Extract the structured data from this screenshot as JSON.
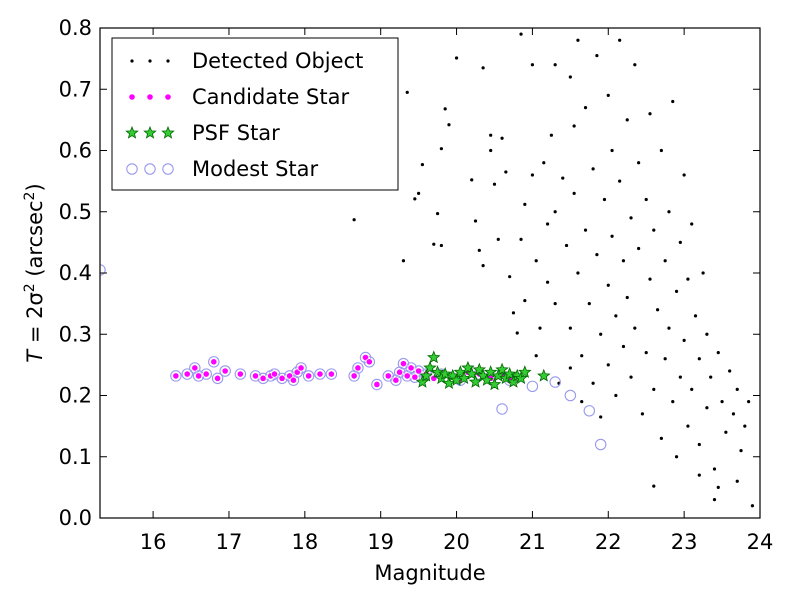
{
  "chart_data": {
    "type": "scatter",
    "xlabel": "Magnitude",
    "ylabel_parts": {
      "prefix": "T",
      "equals": " = 2σ",
      "exp1": "2",
      "mid": " (arcsec",
      "exp2": "2",
      "suffix": ")"
    },
    "xlim": [
      15.3,
      24.0
    ],
    "ylim": [
      0.0,
      0.8
    ],
    "xticks": [
      "16",
      "17",
      "18",
      "19",
      "20",
      "21",
      "22",
      "23",
      "24"
    ],
    "yticks": [
      "0.0",
      "0.1",
      "0.2",
      "0.3",
      "0.4",
      "0.5",
      "0.6",
      "0.7",
      "0.8"
    ],
    "grid": false,
    "legend_position": "top-left",
    "legend": [
      {
        "label": "Detected Object",
        "marker": "dot",
        "color": "#000000"
      },
      {
        "label": "Candidate Star",
        "marker": "circle",
        "color": "#ff00ff"
      },
      {
        "label": "PSF Star",
        "marker": "star",
        "color": "#00aa00"
      },
      {
        "label": "Modest Star",
        "marker": "ring",
        "color": "#9999ee"
      }
    ],
    "series": [
      {
        "name": "Detected Object",
        "marker": "dot",
        "color": "#000000",
        "points": [
          [
            18.65,
            0.487
          ],
          [
            19.05,
            0.753
          ],
          [
            19.15,
            0.748
          ],
          [
            19.3,
            0.42
          ],
          [
            19.35,
            0.695
          ],
          [
            19.45,
            0.521
          ],
          [
            19.5,
            0.53
          ],
          [
            19.55,
            0.577
          ],
          [
            19.7,
            0.447
          ],
          [
            19.75,
            0.497
          ],
          [
            19.8,
            0.445
          ],
          [
            19.8,
            0.603
          ],
          [
            19.85,
            0.668
          ],
          [
            19.9,
            0.642
          ],
          [
            20.0,
            0.751
          ],
          [
            20.2,
            0.552
          ],
          [
            20.25,
            0.485
          ],
          [
            20.3,
            0.437
          ],
          [
            20.35,
            0.735
          ],
          [
            20.35,
            0.412
          ],
          [
            20.45,
            0.625
          ],
          [
            20.45,
            0.6
          ],
          [
            20.5,
            0.545
          ],
          [
            20.55,
            0.455
          ],
          [
            20.6,
            0.62
          ],
          [
            20.65,
            0.565
          ],
          [
            20.7,
            0.394
          ],
          [
            20.75,
            0.335
          ],
          [
            20.8,
            0.302
          ],
          [
            20.85,
            0.79
          ],
          [
            20.85,
            0.455
          ],
          [
            20.9,
            0.512
          ],
          [
            20.9,
            0.355
          ],
          [
            21.0,
            0.74
          ],
          [
            21.0,
            0.56
          ],
          [
            21.05,
            0.42
          ],
          [
            21.05,
            0.265
          ],
          [
            21.1,
            0.31
          ],
          [
            21.15,
            0.58
          ],
          [
            21.2,
            0.48
          ],
          [
            21.2,
            0.385
          ],
          [
            21.25,
            0.625
          ],
          [
            21.3,
            0.74
          ],
          [
            21.3,
            0.5
          ],
          [
            21.3,
            0.35
          ],
          [
            21.35,
            0.22
          ],
          [
            21.4,
            0.555
          ],
          [
            21.45,
            0.445
          ],
          [
            21.5,
            0.72
          ],
          [
            21.5,
            0.31
          ],
          [
            21.5,
            0.245
          ],
          [
            21.55,
            0.64
          ],
          [
            21.55,
            0.53
          ],
          [
            21.6,
            0.78
          ],
          [
            21.6,
            0.4
          ],
          [
            21.65,
            0.265
          ],
          [
            21.65,
            0.19
          ],
          [
            21.7,
            0.67
          ],
          [
            21.7,
            0.47
          ],
          [
            21.75,
            0.35
          ],
          [
            21.8,
            0.57
          ],
          [
            21.8,
            0.22
          ],
          [
            21.85,
            0.755
          ],
          [
            21.85,
            0.43
          ],
          [
            21.9,
            0.3
          ],
          [
            21.9,
            0.165
          ],
          [
            21.95,
            0.52
          ],
          [
            22.0,
            0.69
          ],
          [
            22.0,
            0.38
          ],
          [
            22.0,
            0.25
          ],
          [
            22.05,
            0.6
          ],
          [
            22.05,
            0.46
          ],
          [
            22.1,
            0.33
          ],
          [
            22.1,
            0.2
          ],
          [
            22.15,
            0.78
          ],
          [
            22.15,
            0.55
          ],
          [
            22.2,
            0.42
          ],
          [
            22.2,
            0.28
          ],
          [
            22.25,
            0.65
          ],
          [
            22.25,
            0.36
          ],
          [
            22.3,
            0.49
          ],
          [
            22.3,
            0.23
          ],
          [
            22.35,
            0.74
          ],
          [
            22.35,
            0.31
          ],
          [
            22.4,
            0.58
          ],
          [
            22.4,
            0.44
          ],
          [
            22.45,
            0.17
          ],
          [
            22.5,
            0.52
          ],
          [
            22.5,
            0.27
          ],
          [
            22.55,
            0.66
          ],
          [
            22.55,
            0.39
          ],
          [
            22.6,
            0.47
          ],
          [
            22.6,
            0.21
          ],
          [
            22.65,
            0.34
          ],
          [
            22.7,
            0.6
          ],
          [
            22.7,
            0.13
          ],
          [
            22.75,
            0.42
          ],
          [
            22.75,
            0.26
          ],
          [
            22.8,
            0.5
          ],
          [
            22.8,
            0.31
          ],
          [
            22.85,
            0.68
          ],
          [
            22.85,
            0.19
          ],
          [
            22.9,
            0.37
          ],
          [
            22.9,
            0.1
          ],
          [
            22.95,
            0.45
          ],
          [
            22.95,
            0.23
          ],
          [
            23.0,
            0.56
          ],
          [
            23.0,
            0.29
          ],
          [
            23.05,
            0.39
          ],
          [
            23.05,
            0.15
          ],
          [
            23.1,
            0.48
          ],
          [
            23.1,
            0.21
          ],
          [
            23.15,
            0.33
          ],
          [
            23.2,
            0.26
          ],
          [
            23.2,
            0.12
          ],
          [
            23.25,
            0.4
          ],
          [
            23.3,
            0.18
          ],
          [
            23.3,
            0.3
          ],
          [
            23.35,
            0.23
          ],
          [
            23.4,
            0.08
          ],
          [
            23.45,
            0.27
          ],
          [
            23.45,
            0.05
          ],
          [
            23.5,
            0.19
          ],
          [
            23.55,
            0.14
          ],
          [
            23.6,
            0.24
          ],
          [
            23.65,
            0.17
          ],
          [
            23.7,
            0.21
          ],
          [
            23.75,
            0.11
          ],
          [
            23.8,
            0.15
          ],
          [
            23.85,
            0.19
          ],
          [
            23.9,
            0.02
          ],
          [
            22.6,
            0.052
          ],
          [
            23.4,
            0.03
          ],
          [
            23.2,
            0.07
          ],
          [
            23.7,
            0.06
          ]
        ]
      },
      {
        "name": "Candidate Star",
        "marker": "circle",
        "color": "#ff00ff",
        "points": [
          [
            16.3,
            0.232
          ],
          [
            16.45,
            0.235
          ],
          [
            16.55,
            0.245
          ],
          [
            16.6,
            0.232
          ],
          [
            16.7,
            0.235
          ],
          [
            16.8,
            0.255
          ],
          [
            16.85,
            0.228
          ],
          [
            16.95,
            0.24
          ],
          [
            17.15,
            0.235
          ],
          [
            17.35,
            0.232
          ],
          [
            17.45,
            0.228
          ],
          [
            17.55,
            0.232
          ],
          [
            17.6,
            0.235
          ],
          [
            17.7,
            0.228
          ],
          [
            17.8,
            0.232
          ],
          [
            17.85,
            0.225
          ],
          [
            17.9,
            0.238
          ],
          [
            17.95,
            0.245
          ],
          [
            18.05,
            0.232
          ],
          [
            18.2,
            0.235
          ],
          [
            18.35,
            0.235
          ],
          [
            18.65,
            0.232
          ],
          [
            18.7,
            0.245
          ],
          [
            18.8,
            0.262
          ],
          [
            18.85,
            0.255
          ],
          [
            18.95,
            0.218
          ],
          [
            19.1,
            0.232
          ],
          [
            19.2,
            0.225
          ],
          [
            19.25,
            0.238
          ],
          [
            19.3,
            0.252
          ],
          [
            19.35,
            0.232
          ],
          [
            19.4,
            0.245
          ],
          [
            19.45,
            0.23
          ],
          [
            19.5,
            0.24
          ],
          [
            19.55,
            0.222
          ],
          [
            19.6,
            0.235
          ],
          [
            19.7,
            0.228
          ],
          [
            19.8,
            0.235
          ],
          [
            19.95,
            0.232
          ],
          [
            20.05,
            0.225
          ],
          [
            20.15,
            0.238
          ],
          [
            20.3,
            0.235
          ],
          [
            20.45,
            0.228
          ],
          [
            20.6,
            0.232
          ],
          [
            20.7,
            0.225
          ]
        ]
      },
      {
        "name": "PSF Star",
        "marker": "star",
        "color": "#00aa00",
        "points": [
          [
            19.55,
            0.222
          ],
          [
            19.6,
            0.232
          ],
          [
            19.65,
            0.245
          ],
          [
            19.7,
            0.262
          ],
          [
            19.75,
            0.238
          ],
          [
            19.8,
            0.228
          ],
          [
            19.85,
            0.235
          ],
          [
            19.9,
            0.22
          ],
          [
            19.95,
            0.232
          ],
          [
            20.0,
            0.225
          ],
          [
            20.05,
            0.238
          ],
          [
            20.1,
            0.228
          ],
          [
            20.15,
            0.245
          ],
          [
            20.2,
            0.235
          ],
          [
            20.25,
            0.222
          ],
          [
            20.3,
            0.242
          ],
          [
            20.35,
            0.232
          ],
          [
            20.4,
            0.225
          ],
          [
            20.45,
            0.238
          ],
          [
            20.5,
            0.218
          ],
          [
            20.55,
            0.232
          ],
          [
            20.6,
            0.242
          ],
          [
            20.65,
            0.228
          ],
          [
            20.7,
            0.235
          ],
          [
            20.75,
            0.222
          ],
          [
            20.8,
            0.232
          ],
          [
            20.85,
            0.228
          ],
          [
            20.9,
            0.238
          ],
          [
            21.15,
            0.232
          ]
        ]
      },
      {
        "name": "Modest Star",
        "marker": "ring",
        "color": "#9999ee",
        "points": [
          [
            15.3,
            0.405
          ],
          [
            16.3,
            0.232
          ],
          [
            16.45,
            0.235
          ],
          [
            16.55,
            0.245
          ],
          [
            16.6,
            0.232
          ],
          [
            16.7,
            0.235
          ],
          [
            16.8,
            0.255
          ],
          [
            16.85,
            0.228
          ],
          [
            16.95,
            0.24
          ],
          [
            17.15,
            0.235
          ],
          [
            17.35,
            0.232
          ],
          [
            17.45,
            0.228
          ],
          [
            17.55,
            0.232
          ],
          [
            17.6,
            0.235
          ],
          [
            17.7,
            0.228
          ],
          [
            17.8,
            0.232
          ],
          [
            17.85,
            0.225
          ],
          [
            17.9,
            0.238
          ],
          [
            17.95,
            0.245
          ],
          [
            18.05,
            0.232
          ],
          [
            18.2,
            0.235
          ],
          [
            18.35,
            0.235
          ],
          [
            18.65,
            0.232
          ],
          [
            18.7,
            0.245
          ],
          [
            18.8,
            0.262
          ],
          [
            18.85,
            0.255
          ],
          [
            18.95,
            0.218
          ],
          [
            19.1,
            0.232
          ],
          [
            19.2,
            0.225
          ],
          [
            19.25,
            0.238
          ],
          [
            19.3,
            0.252
          ],
          [
            19.35,
            0.232
          ],
          [
            19.4,
            0.245
          ],
          [
            19.45,
            0.23
          ],
          [
            19.5,
            0.24
          ],
          [
            19.6,
            0.235
          ],
          [
            19.8,
            0.235
          ],
          [
            20.05,
            0.225
          ],
          [
            20.3,
            0.235
          ],
          [
            20.6,
            0.178
          ],
          [
            20.7,
            0.225
          ],
          [
            21.0,
            0.215
          ],
          [
            21.3,
            0.222
          ],
          [
            21.5,
            0.2
          ],
          [
            21.75,
            0.175
          ],
          [
            21.9,
            0.12
          ]
        ]
      }
    ]
  }
}
